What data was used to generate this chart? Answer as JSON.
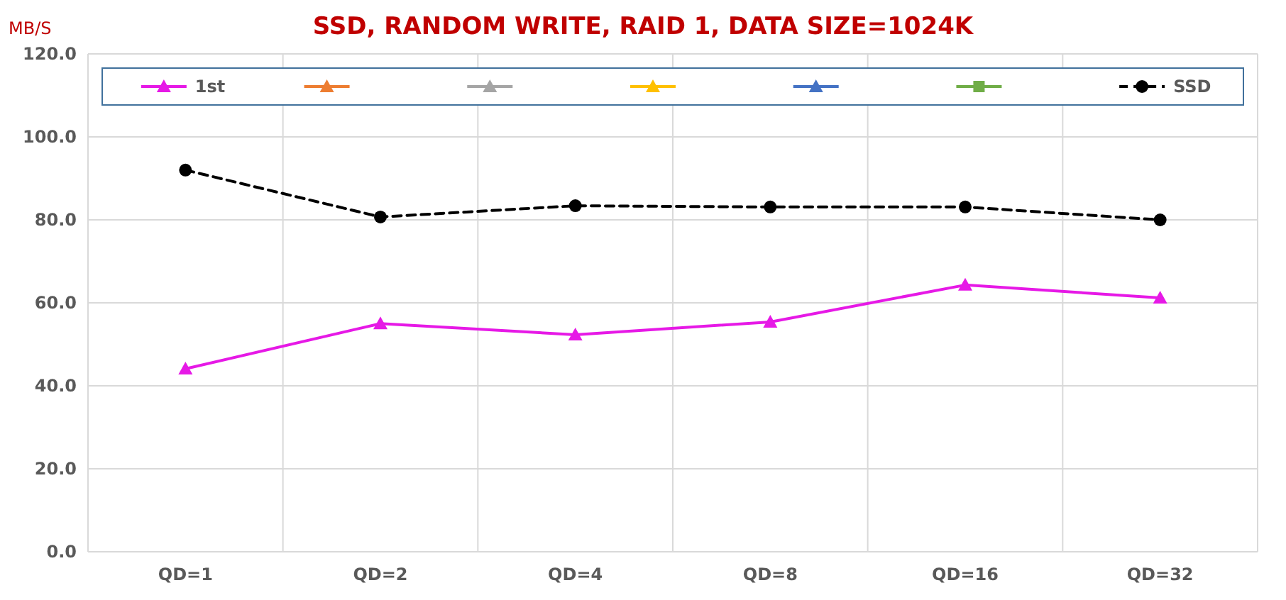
{
  "chart_data": {
    "type": "line",
    "title": "SSD, RANDOM WRITE, RAID 1, DATA SIZE=1024K",
    "ylabel": "MB/S",
    "categories": [
      "QD=1",
      "QD=2",
      "QD=4",
      "QD=8",
      "QD=16",
      "QD=32"
    ],
    "series": [
      {
        "name": "1st",
        "color": "#e619e6",
        "marker": "triangle",
        "line_style": "solid",
        "values": [
          44.1,
          55.0,
          52.3,
          55.4,
          64.3,
          61.2
        ]
      },
      {
        "color": "#ed7d31",
        "marker": "triangle",
        "line_style": "solid",
        "values": [
          null,
          null,
          null,
          null,
          null,
          null
        ]
      },
      {
        "color": "#a5a5a5",
        "marker": "triangle",
        "line_style": "solid",
        "values": [
          null,
          null,
          null,
          null,
          null,
          null
        ]
      },
      {
        "color": "#ffc000",
        "marker": "triangle",
        "line_style": "solid",
        "values": [
          null,
          null,
          null,
          null,
          null,
          null
        ]
      },
      {
        "color": "#4472c4",
        "marker": "triangle",
        "line_style": "solid",
        "values": [
          null,
          null,
          null,
          null,
          null,
          null
        ]
      },
      {
        "color": "#70ad47",
        "marker": "square",
        "line_style": "solid",
        "values": [
          null,
          null,
          null,
          null,
          null,
          null
        ]
      },
      {
        "name": "SSD",
        "color": "#000000",
        "marker": "circle",
        "line_style": "dashed",
        "values": [
          92.0,
          80.7,
          83.4,
          83.1,
          83.1,
          80.0
        ]
      }
    ],
    "ylim": [
      0,
      120
    ],
    "yticks": [
      {
        "value": 0,
        "label": "0.0"
      },
      {
        "value": 20,
        "label": "20.0"
      },
      {
        "value": 40,
        "label": "40.0"
      },
      {
        "value": 60,
        "label": "60.0"
      },
      {
        "value": 80,
        "label": "80.0"
      },
      {
        "value": 100,
        "label": "100.0"
      },
      {
        "value": 120,
        "label": "120.0"
      }
    ],
    "grid": true,
    "legend": "top"
  }
}
